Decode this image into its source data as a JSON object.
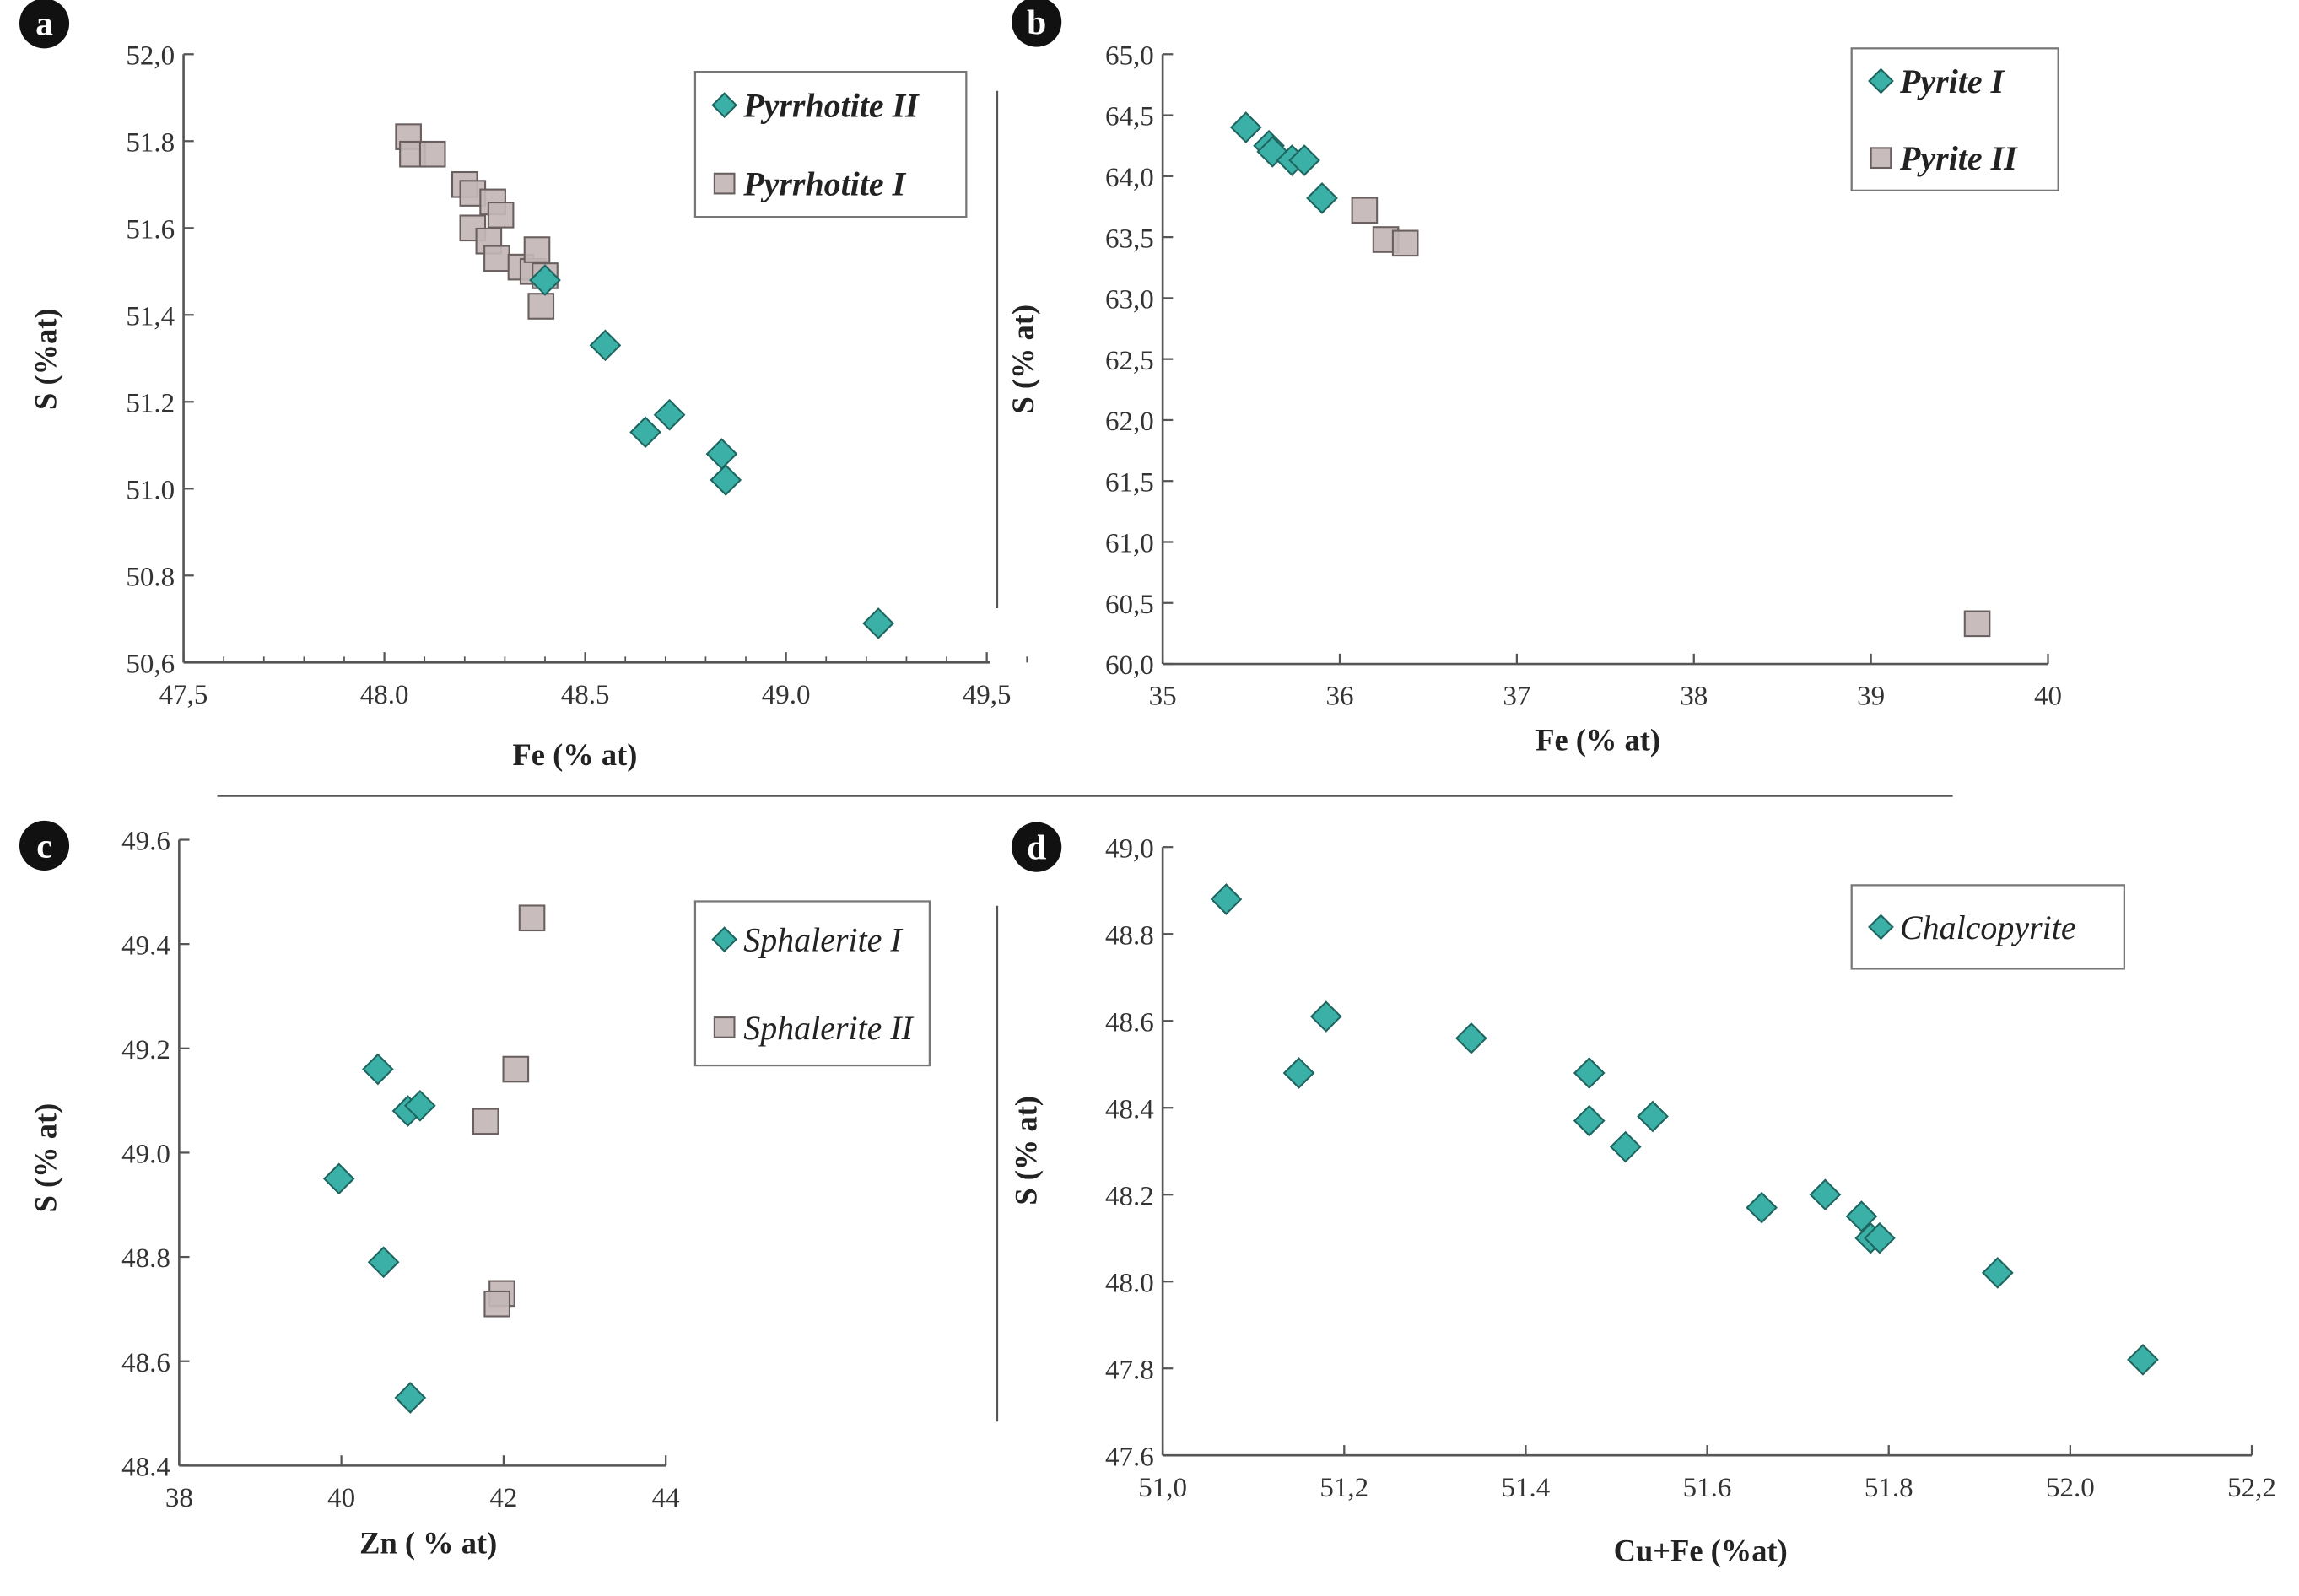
{
  "colors": {
    "diamond_fill": "#3bb0a7",
    "diamond_stroke": "#1e6560",
    "square_fill": "#c3b6b6",
    "square_stroke": "#6a5f5f",
    "axis": "#555555"
  },
  "chart_data": [
    {
      "panel_label": "a",
      "type": "scatter",
      "xlabel": "Fe (% at)",
      "ylabel": "S (%at)",
      "xlim": [
        47.5,
        49.6
      ],
      "ylim": [
        50.6,
        52.0
      ],
      "minor_x": 0.1,
      "minor_y": 0.1,
      "xticks": [
        {
          "v": 47.5,
          "label": "47,5"
        },
        {
          "v": 48.0,
          "label": "48.0"
        },
        {
          "v": 48.5,
          "label": "48.5"
        },
        {
          "v": 49.0,
          "label": "49.0"
        },
        {
          "v": 49.5,
          "label": "49,5"
        }
      ],
      "yticks": [
        {
          "v": 52.0,
          "label": "52,0"
        },
        {
          "v": 51.8,
          "label": "51.8"
        },
        {
          "v": 51.6,
          "label": "51.6"
        },
        {
          "v": 51.4,
          "label": "51,4"
        },
        {
          "v": 51.2,
          "label": "51.2"
        },
        {
          "v": 51.0,
          "label": "51.0"
        },
        {
          "v": 50.8,
          "label": "50.8"
        },
        {
          "v": 50.6,
          "label": "50,6"
        }
      ],
      "legend_bold": true,
      "series": [
        {
          "name": "Pyrrhotite II",
          "marker": "diamond",
          "points": [
            [
              48.4,
              51.48
            ],
            [
              48.55,
              51.33
            ],
            [
              48.65,
              51.13
            ],
            [
              48.71,
              51.17
            ],
            [
              48.84,
              51.08
            ],
            [
              48.85,
              51.02
            ],
            [
              49.23,
              50.69
            ]
          ]
        },
        {
          "name": "Pyrrhotite I",
          "marker": "square",
          "points": [
            [
              48.06,
              51.81
            ],
            [
              48.07,
              51.77
            ],
            [
              48.12,
              51.77
            ],
            [
              48.2,
              51.7
            ],
            [
              48.22,
              51.68
            ],
            [
              48.22,
              51.6
            ],
            [
              48.26,
              51.57
            ],
            [
              48.27,
              51.66
            ],
            [
              48.29,
              51.63
            ],
            [
              48.28,
              51.53
            ],
            [
              48.34,
              51.51
            ],
            [
              48.37,
              51.5
            ],
            [
              48.38,
              51.55
            ],
            [
              48.4,
              51.49
            ],
            [
              48.39,
              51.42
            ]
          ]
        }
      ]
    },
    {
      "panel_label": "b",
      "type": "scatter",
      "xlabel": "Fe (% at)",
      "ylabel": "S (% at)",
      "xlim": [
        35,
        40
      ],
      "ylim": [
        60.0,
        65.0
      ],
      "minor_x": 0,
      "minor_y": 0,
      "xticks": [
        {
          "v": 35,
          "label": "35"
        },
        {
          "v": 36,
          "label": "36"
        },
        {
          "v": 37,
          "label": "37"
        },
        {
          "v": 38,
          "label": "38"
        },
        {
          "v": 39,
          "label": "39"
        },
        {
          "v": 40,
          "label": "40"
        }
      ],
      "yticks": [
        {
          "v": 65.0,
          "label": "65,0"
        },
        {
          "v": 64.5,
          "label": "64,5"
        },
        {
          "v": 64.0,
          "label": "64,0"
        },
        {
          "v": 63.5,
          "label": "63,5"
        },
        {
          "v": 63.0,
          "label": "63,0"
        },
        {
          "v": 62.5,
          "label": "62,5"
        },
        {
          "v": 62.0,
          "label": "62,0"
        },
        {
          "v": 61.5,
          "label": "61,5"
        },
        {
          "v": 61.0,
          "label": "61,0"
        },
        {
          "v": 60.5,
          "label": "60,5"
        },
        {
          "v": 60.0,
          "label": "60,0"
        }
      ],
      "legend_bold": true,
      "series": [
        {
          "name": "Pyrite I",
          "marker": "diamond",
          "points": [
            [
              35.47,
              64.4
            ],
            [
              35.6,
              64.25
            ],
            [
              35.62,
              64.2
            ],
            [
              35.73,
              64.13
            ],
            [
              35.8,
              64.13
            ],
            [
              35.9,
              63.82
            ]
          ]
        },
        {
          "name": "Pyrite II",
          "marker": "square",
          "points": [
            [
              36.14,
              63.72
            ],
            [
              36.26,
              63.48
            ],
            [
              36.37,
              63.45
            ],
            [
              39.6,
              60.33
            ]
          ]
        }
      ]
    },
    {
      "panel_label": "c",
      "type": "scatter",
      "xlabel": "Zn ( % at)",
      "ylabel": "S (% at)",
      "xlim": [
        38,
        44
      ],
      "ylim": [
        48.4,
        49.6
      ],
      "minor_x": 0,
      "minor_y": 0,
      "xticks": [
        {
          "v": 38,
          "label": "38"
        },
        {
          "v": 40,
          "label": "40"
        },
        {
          "v": 42,
          "label": "42"
        },
        {
          "v": 44,
          "label": "44"
        }
      ],
      "yticks": [
        {
          "v": 49.6,
          "label": "49.6"
        },
        {
          "v": 49.4,
          "label": "49.4"
        },
        {
          "v": 49.2,
          "label": "49.2"
        },
        {
          "v": 49.0,
          "label": "49.0"
        },
        {
          "v": 48.8,
          "label": "48.8"
        },
        {
          "v": 48.6,
          "label": "48.6"
        },
        {
          "v": 48.4,
          "label": "48.4"
        }
      ],
      "legend_bold": false,
      "series": [
        {
          "name": "Sphalerite I",
          "marker": "diamond",
          "points": [
            [
              40.45,
              49.16
            ],
            [
              40.82,
              49.08
            ],
            [
              40.97,
              49.09
            ],
            [
              39.97,
              48.95
            ],
            [
              40.52,
              48.79
            ],
            [
              40.85,
              48.53
            ]
          ]
        },
        {
          "name": "Sphalerite II",
          "marker": "square",
          "points": [
            [
              42.35,
              49.45
            ],
            [
              42.15,
              49.16
            ],
            [
              41.78,
              49.06
            ],
            [
              41.98,
              48.73
            ],
            [
              41.92,
              48.71
            ]
          ]
        }
      ]
    },
    {
      "panel_label": "d",
      "type": "scatter",
      "xlabel": "Cu+Fe (%at)",
      "ylabel": "S (% at)",
      "xlim": [
        51.0,
        52.2
      ],
      "ylim": [
        47.6,
        49.0
      ],
      "minor_x": 0,
      "minor_y": 0,
      "xticks": [
        {
          "v": 51.0,
          "label": "51,0"
        },
        {
          "v": 51.2,
          "label": "51,2"
        },
        {
          "v": 51.4,
          "label": "51.4"
        },
        {
          "v": 51.6,
          "label": "51.6"
        },
        {
          "v": 51.8,
          "label": "51.8"
        },
        {
          "v": 52.0,
          "label": "52.0"
        },
        {
          "v": 52.2,
          "label": "52,2"
        }
      ],
      "yticks": [
        {
          "v": 49.0,
          "label": "49,0"
        },
        {
          "v": 48.8,
          "label": "48.8"
        },
        {
          "v": 48.6,
          "label": "48.6"
        },
        {
          "v": 48.4,
          "label": "48.4"
        },
        {
          "v": 48.2,
          "label": "48.2"
        },
        {
          "v": 48.0,
          "label": "48.0"
        },
        {
          "v": 47.8,
          "label": "47.8"
        },
        {
          "v": 47.6,
          "label": "47.6"
        }
      ],
      "legend_bold": false,
      "series": [
        {
          "name": "Chalcopyrite",
          "marker": "diamond",
          "points": [
            [
              51.07,
              48.88
            ],
            [
              51.18,
              48.61
            ],
            [
              51.15,
              48.48
            ],
            [
              51.34,
              48.56
            ],
            [
              51.47,
              48.48
            ],
            [
              51.47,
              48.37
            ],
            [
              51.54,
              48.38
            ],
            [
              51.51,
              48.31
            ],
            [
              51.66,
              48.17
            ],
            [
              51.73,
              48.2
            ],
            [
              51.77,
              48.15
            ],
            [
              51.78,
              48.1
            ],
            [
              51.79,
              48.1
            ],
            [
              51.92,
              48.02
            ],
            [
              52.08,
              47.82
            ]
          ]
        }
      ]
    }
  ]
}
